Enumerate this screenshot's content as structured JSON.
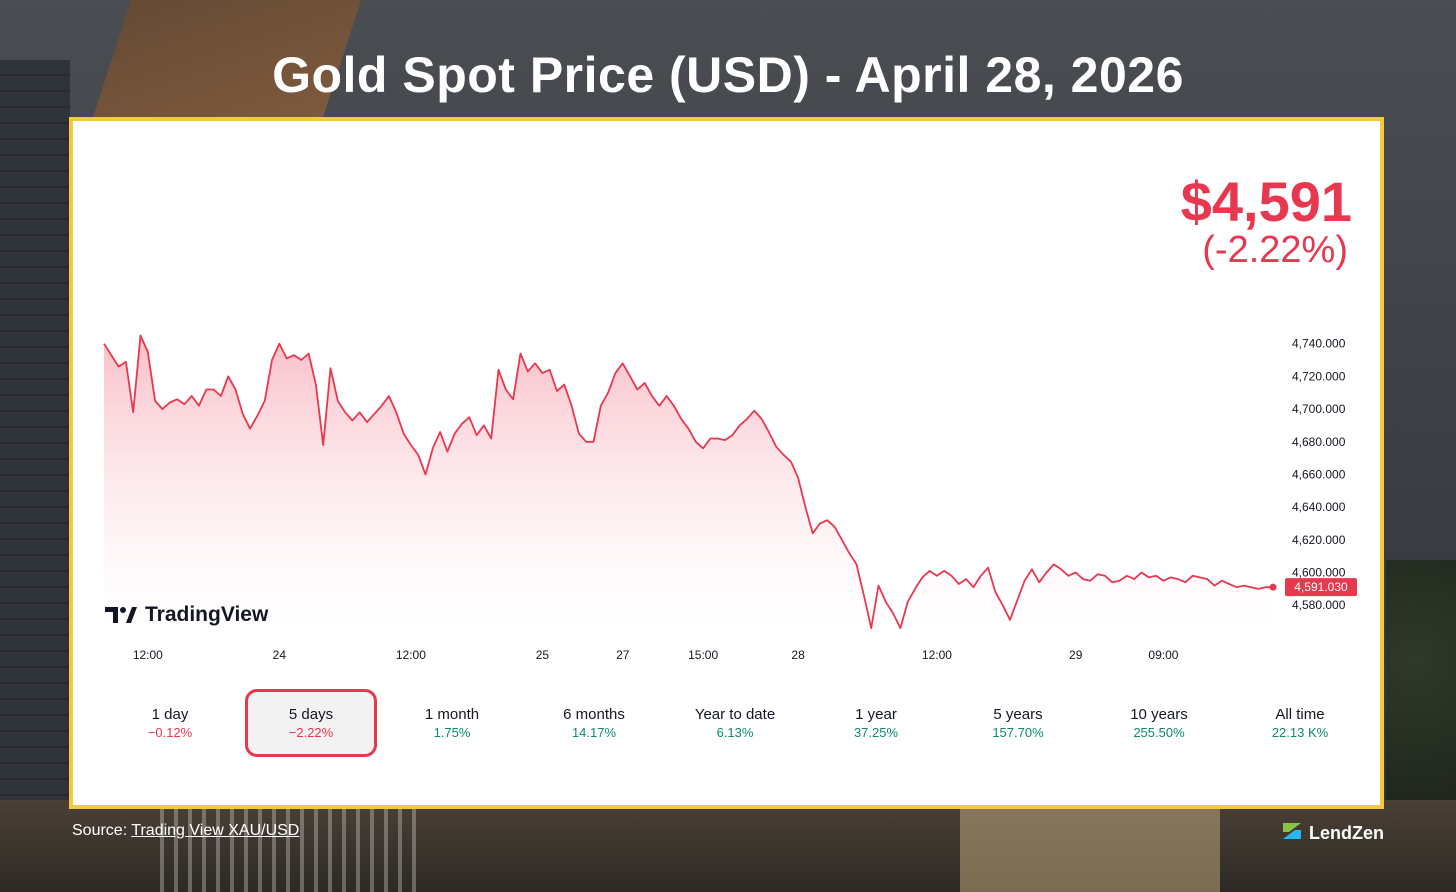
{
  "title": "Gold Spot Price (USD) - April 28, 2026",
  "price": {
    "value": "$4,591",
    "change": "(-2.22%)"
  },
  "colors": {
    "line": "#e8384f",
    "positive": "#0b8a6f",
    "negative": "#e8384f",
    "frame": "#f5c842"
  },
  "brand_logo": {
    "name": "TradingView",
    "icon": "tradingview-logo-icon"
  },
  "periods": [
    {
      "label": "1 day",
      "change": "−0.12%",
      "direction": "negative",
      "selected": false
    },
    {
      "label": "5 days",
      "change": "−2.22%",
      "direction": "negative",
      "selected": true
    },
    {
      "label": "1 month",
      "change": "1.75%",
      "direction": "positive",
      "selected": false
    },
    {
      "label": "6 months",
      "change": "14.17%",
      "direction": "positive",
      "selected": false
    },
    {
      "label": "Year to date",
      "change": "6.13%",
      "direction": "positive",
      "selected": false
    },
    {
      "label": "1 year",
      "change": "37.25%",
      "direction": "positive",
      "selected": false
    },
    {
      "label": "5 years",
      "change": "157.70%",
      "direction": "positive",
      "selected": false
    },
    {
      "label": "10 years",
      "change": "255.50%",
      "direction": "positive",
      "selected": false
    },
    {
      "label": "All time",
      "change": "22.13 K%",
      "direction": "positive",
      "selected": false
    }
  ],
  "footer": {
    "source_prefix": "Source: ",
    "source_link": "Trading View XAU/USD",
    "brand": "LendZen",
    "brand_icon": "lendzen-logo-icon"
  },
  "chart_data": {
    "type": "area",
    "x_ticks": [
      "12:00",
      "24",
      "12:00",
      "25",
      "27",
      "15:00",
      "28",
      "12:00",
      "29",
      "09:00"
    ],
    "x_tick_positions": [
      6,
      24,
      42,
      60,
      71,
      82,
      95,
      114,
      133,
      145
    ],
    "y_ticks": [
      "4,740.000",
      "4,720.000",
      "4,700.000",
      "4,680.000",
      "4,660.000",
      "4,640.000",
      "4,620.000",
      "4,600.000",
      "4,580.000"
    ],
    "y_tick_values": [
      4740,
      4720,
      4700,
      4680,
      4660,
      4640,
      4620,
      4600,
      4580
    ],
    "ylim": [
      4563,
      4760
    ],
    "last_value": 4591.03,
    "last_label": "4,591.030",
    "x": [
      0,
      1,
      2,
      3,
      4,
      5,
      6,
      7,
      8,
      9,
      10,
      11,
      12,
      13,
      14,
      15,
      16,
      17,
      18,
      19,
      20,
      21,
      22,
      23,
      24,
      25,
      26,
      27,
      28,
      29,
      30,
      31,
      32,
      33,
      34,
      35,
      36,
      37,
      38,
      39,
      40,
      41,
      42,
      43,
      44,
      45,
      46,
      47,
      48,
      49,
      50,
      51,
      52,
      53,
      54,
      55,
      56,
      57,
      58,
      59,
      60,
      61,
      62,
      63,
      64,
      65,
      66,
      67,
      68,
      69,
      70,
      71,
      72,
      73,
      74,
      75,
      76,
      77,
      78,
      79,
      80,
      81,
      82,
      83,
      84,
      85,
      86,
      87,
      88,
      89,
      90,
      91,
      92,
      93,
      94,
      95,
      96,
      97,
      98,
      99,
      100,
      101,
      102,
      103,
      104,
      105,
      106,
      107,
      108,
      109,
      110,
      111,
      112,
      113,
      114,
      115,
      116,
      117,
      118,
      119,
      120,
      121,
      122,
      123,
      124,
      125,
      126,
      127,
      128,
      129,
      130,
      131,
      132,
      133,
      134,
      135,
      136,
      137,
      138,
      139,
      140,
      141,
      142,
      143,
      144,
      145,
      146,
      147,
      148,
      149,
      150,
      151,
      152,
      153,
      154,
      155,
      156,
      157,
      158,
      159,
      160
    ],
    "values": [
      4740,
      4733,
      4726,
      4729,
      4698,
      4745,
      4735,
      4705,
      4700,
      4704,
      4706,
      4703,
      4708,
      4702,
      4712,
      4712,
      4708,
      4720,
      4712,
      4697,
      4688,
      4696,
      4705,
      4730,
      4740,
      4731,
      4733,
      4730,
      4734,
      4715,
      4678,
      4725,
      4705,
      4698,
      4693,
      4698,
      4692,
      4697,
      4702,
      4708,
      4698,
      4685,
      4678,
      4672,
      4660,
      4676,
      4686,
      4674,
      4685,
      4691,
      4695,
      4684,
      4690,
      4682,
      4724,
      4712,
      4706,
      4734,
      4723,
      4728,
      4722,
      4724,
      4711,
      4715,
      4702,
      4685,
      4680,
      4680,
      4702,
      4710,
      4722,
      4728,
      4720,
      4712,
      4716,
      4708,
      4702,
      4708,
      4702,
      4694,
      4688,
      4680,
      4676,
      4682,
      4682,
      4681,
      4684,
      4690,
      4694,
      4699,
      4694,
      4686,
      4677,
      4672,
      4668,
      4658,
      4640,
      4624,
      4630,
      4632,
      4628,
      4620,
      4612,
      4605,
      4586,
      4566,
      4592,
      4582,
      4575,
      4566,
      4582,
      4590,
      4597,
      4601,
      4598,
      4601,
      4598,
      4593,
      4596,
      4591,
      4598,
      4603,
      4588,
      4580,
      4571,
      4583,
      4595,
      4602,
      4594,
      4600,
      4605,
      4602,
      4598,
      4600,
      4596,
      4595,
      4599,
      4598,
      4594,
      4595,
      4598,
      4596,
      4600,
      4597,
      4598,
      4595,
      4597,
      4596,
      4594,
      4598,
      4597,
      4596,
      4592,
      4595,
      4593,
      4591,
      4592,
      4591,
      4590,
      4591.03,
      4591.03
    ]
  }
}
